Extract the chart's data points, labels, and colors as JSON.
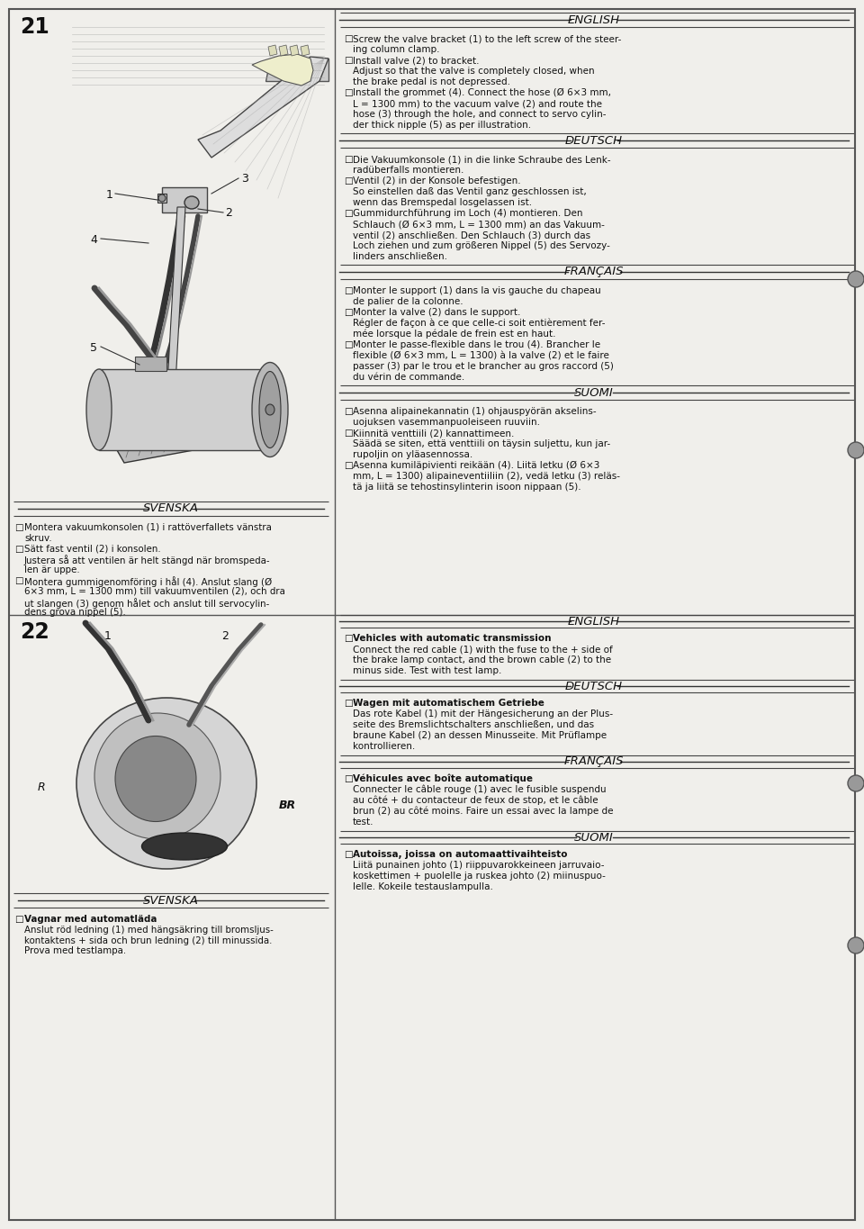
{
  "page_bg": "#f0efeb",
  "border_color": "#444444",
  "text_color": "#111111",
  "fig_width": 9.6,
  "fig_height": 13.65,
  "step21_number": "21",
  "step22_number": "22",
  "english_title_1": "ENGLISH",
  "english_text_1": [
    [
      "□",
      "Screw the valve bracket (1) to the left screw of the steer-"
    ],
    [
      "",
      "ing column clamp."
    ],
    [
      "□",
      "Install valve (2) to bracket."
    ],
    [
      "",
      "Adjust so that the valve is completely closed, when"
    ],
    [
      "",
      "the brake pedal is not depressed."
    ],
    [
      "□",
      "Install the grommet (4). Connect the hose (Ø 6×3 mm,"
    ],
    [
      "",
      "L = 1300 mm) to the vacuum valve (2) and route the"
    ],
    [
      "",
      "hose (3) through the hole, and connect to servo cylin-"
    ],
    [
      "",
      "der thick nipple (5) as per illustration."
    ]
  ],
  "deutsch_title_1": "DEUTSCH",
  "deutsch_text_1": [
    [
      "□",
      "Die Vakuumkonsole (1) in die linke Schraube des Lenk-"
    ],
    [
      "",
      "radüberfalls montieren."
    ],
    [
      "□",
      "Ventil (2) in der Konsole befestigen."
    ],
    [
      "",
      "So einstellen daß das Ventil ganz geschlossen ist,"
    ],
    [
      "",
      "wenn das Bremspedal losgelassen ist."
    ],
    [
      "□",
      "Gummidurchführung im Loch (4) montieren. Den"
    ],
    [
      "",
      "Schlauch (Ø 6×3 mm, L = 1300 mm) an das Vakuum-"
    ],
    [
      "",
      "ventil (2) anschließen. Den Schlauch (3) durch das"
    ],
    [
      "",
      "Loch ziehen und zum größeren Nippel (5) des Servozy-"
    ],
    [
      "",
      "linders anschließen."
    ]
  ],
  "francais_title_1": "FRANÇAIS",
  "francais_text_1": [
    [
      "□",
      "Monter le support (1) dans la vis gauche du chapeau"
    ],
    [
      "",
      "de palier de la colonne."
    ],
    [
      "□",
      "Monter la valve (2) dans le support."
    ],
    [
      "",
      "Régler de façon à ce que celle-ci soit entièrement fer-"
    ],
    [
      "",
      "mée lorsque la pédale de frein est en haut."
    ],
    [
      "□",
      "Monter le passe-flexible dans le trou (4). Brancher le"
    ],
    [
      "",
      "flexible (Ø 6×3 mm, L = 1300) à la valve (2) et le faire"
    ],
    [
      "",
      "passer (3) par le trou et le brancher au gros raccord (5)"
    ],
    [
      "",
      "du vérin de commande."
    ]
  ],
  "suomi_title_1": "SUOMI",
  "suomi_text_1": [
    [
      "□",
      "Asenna alipainekannatin (1) ohjauspyörän akselins-"
    ],
    [
      "",
      "uojuksen vasemmanpuoleiseen ruuviin."
    ],
    [
      "□",
      "Kiinnitä venttiili (2) kannattimeen."
    ],
    [
      "",
      "Säädä se siten, että venttiili on täysin suljettu, kun jar-"
    ],
    [
      "",
      "rupoljin on yläasennossa."
    ],
    [
      "□",
      "Asenna kumiläpivienti reikään (4). Liitä letku (Ø 6×3"
    ],
    [
      "",
      "mm, L = 1300) alipaineventiiliin (2), vedä letku (3) reläs-"
    ],
    [
      "",
      "tä ja liitä se tehostinsylinterin isoon nippaan (5)."
    ]
  ],
  "svenska_title_1": "SVENSKA",
  "svenska_text_1": [
    [
      "□",
      "Montera vakuumkonsolen (1) i rattöverfallets vänstra"
    ],
    [
      "",
      "skruv."
    ],
    [
      "□",
      "Sätt fast ventil (2) i konsolen."
    ],
    [
      "",
      "Justera så att ventilen är helt stängd när bromspeda-"
    ],
    [
      "",
      "len är uppe."
    ],
    [
      "□",
      "Montera gummigenomföring i hål (4). Anslut slang (Ø"
    ],
    [
      "",
      "6×3 mm, L = 1300 mm) till vakuumventilen (2), och dra"
    ],
    [
      "",
      "ut slangen (3) genom hålet och anslut till servocylin-"
    ],
    [
      "",
      "dens grova nippel (5)."
    ]
  ],
  "english_title_2": "ENGLISH",
  "english_bold_2": "Vehicles with automatic transmission",
  "english_text_2": [
    [
      "□",
      "Vehicles with automatic transmission",
      true
    ],
    [
      "",
      "Connect the red cable (1) with the fuse to the + side of",
      false
    ],
    [
      "",
      "the brake lamp contact, and the brown cable (2) to the",
      false
    ],
    [
      "",
      "minus side. Test with test lamp.",
      false
    ]
  ],
  "deutsch_title_2": "DEUTSCH",
  "deutsch_bold_2": "Wagen mit automatischem Getriebe",
  "deutsch_text_2": [
    [
      "□",
      "Wagen mit automatischem Getriebe",
      true
    ],
    [
      "",
      "Das rote Kabel (1) mit der Hängesicherung an der Plus-",
      false
    ],
    [
      "",
      "seite des Bremslichtschalters anschließen, und das",
      false
    ],
    [
      "",
      "braune Kabel (2) an dessen Minusseite. Mit Prüflampe",
      false
    ],
    [
      "",
      "kontrollieren.",
      false
    ]
  ],
  "francais_title_2": "FRANÇAIS",
  "francais_bold_2": "Véhicules avec boîte automatique",
  "francais_text_2": [
    [
      "□",
      "Véhicules avec boîte automatique",
      true
    ],
    [
      "",
      "Connecter le câble rouge (1) avec le fusible suspendu",
      false
    ],
    [
      "",
      "au côté + du contacteur de feux de stop, et le câble",
      false
    ],
    [
      "",
      "brun (2) au côté moins. Faire un essai avec la lampe de",
      false
    ],
    [
      "",
      "test.",
      false
    ]
  ],
  "suomi_title_2": "SUOMI",
  "suomi_bold_2": "Autoissa, joissa on automaattivaihteisto",
  "suomi_text_2": [
    [
      "□",
      "Autoissa, joissa on automaattivaihteisto",
      true
    ],
    [
      "",
      "Liitä punainen johto (1) riippuvarokkeineen jarruvaio-",
      false
    ],
    [
      "",
      "koskettimen + puolelle ja ruskea johto (2) miinuspuo-",
      false
    ],
    [
      "",
      "lelle. Kokeile testauslampulla.",
      false
    ]
  ],
  "svenska_title_2": "SVENSKA",
  "svenska_bold_2": "Vagnar med automatläda",
  "svenska_text_2": [
    [
      "□",
      "Vagnar med automatläda",
      true
    ],
    [
      "",
      "Anslut röd ledning (1) med hängsäkring till bromsljus-",
      false
    ],
    [
      "",
      "kontaktens + sida och brun ledning (2) till minussida.",
      false
    ],
    [
      "",
      "Prova med testlampa.",
      false
    ]
  ]
}
